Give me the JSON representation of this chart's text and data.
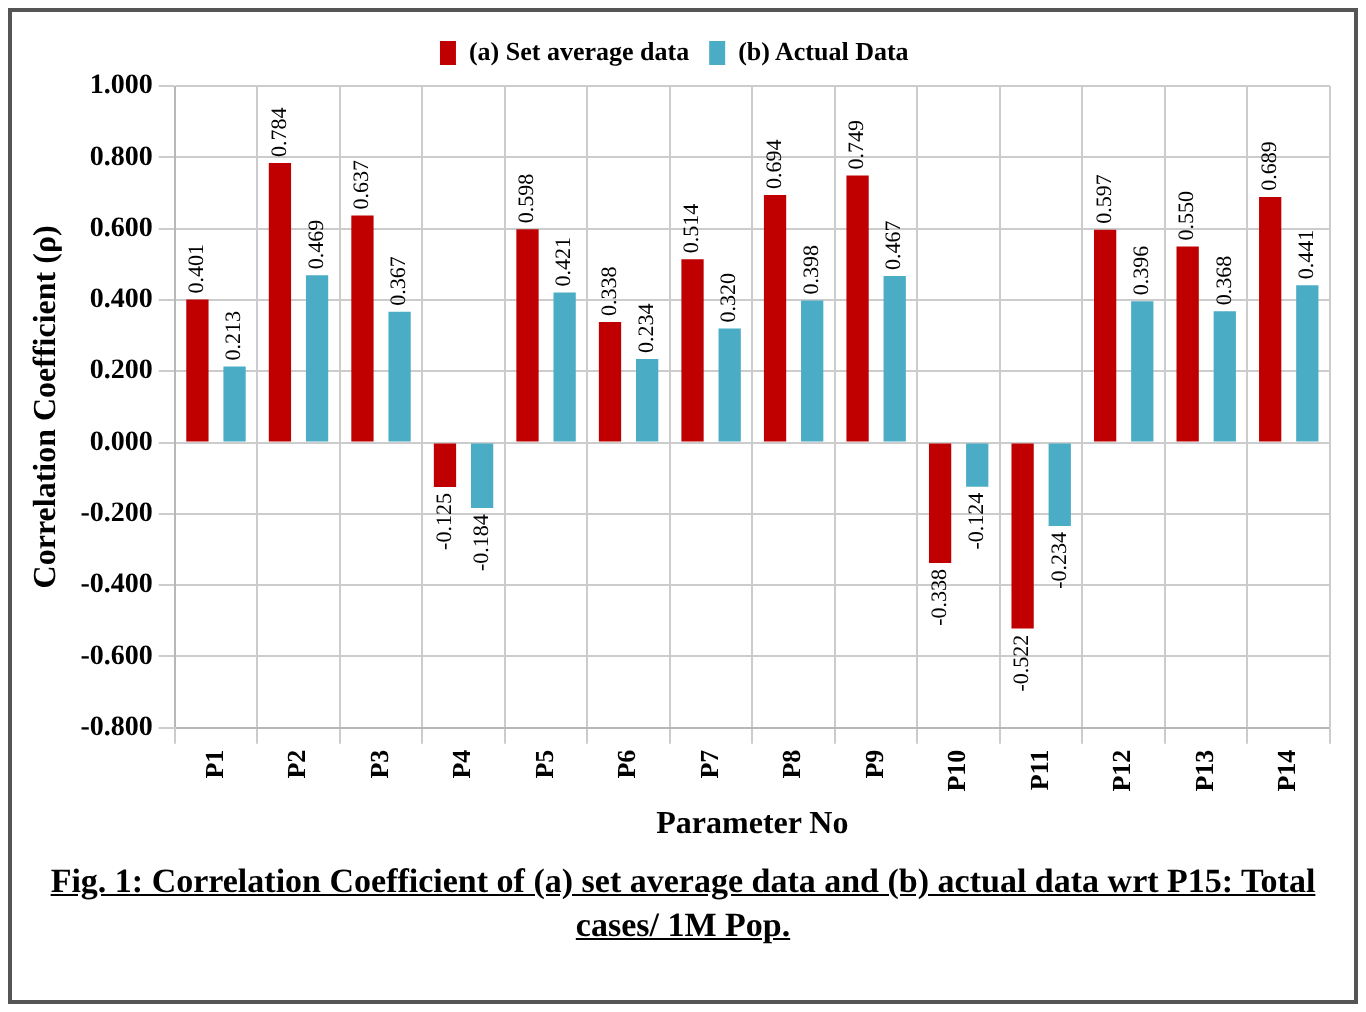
{
  "chart_data": {
    "type": "bar",
    "xlabel": "Parameter No",
    "ylabel": "Correlation Coefficient (ρ)",
    "categories": [
      "P1",
      "P2",
      "P3",
      "P4",
      "P5",
      "P6",
      "P7",
      "P8",
      "P9",
      "P10",
      "P11",
      "P12",
      "P13",
      "P14"
    ],
    "series": [
      {
        "name": "(a) Set average data",
        "color": "#c00000",
        "values": [
          0.401,
          0.784,
          0.637,
          -0.125,
          0.598,
          0.338,
          0.514,
          0.694,
          0.749,
          -0.338,
          -0.522,
          0.597,
          0.55,
          0.689
        ],
        "value_labels": [
          "0.401",
          "0.784",
          "0.637",
          "-0.125",
          "0.598",
          "0.338",
          "0.514",
          "0.694",
          "0.749",
          "-0.338",
          "-0.522",
          "0.597",
          "0.550",
          "0.689"
        ]
      },
      {
        "name": "(b) Actual Data",
        "color": "#4bacc6",
        "values": [
          0.213,
          0.469,
          0.367,
          -0.184,
          0.421,
          0.234,
          0.32,
          0.398,
          0.467,
          -0.124,
          -0.234,
          0.396,
          0.368,
          0.441
        ],
        "value_labels": [
          "0.213",
          "0.469",
          "0.367",
          "-0.184",
          "0.421",
          "0.234",
          "0.320",
          "0.398",
          "0.467",
          "-0.124",
          "-0.234",
          "0.396",
          "0.368",
          "0.441"
        ]
      }
    ],
    "ylim": [
      -0.8,
      1.0
    ],
    "yticks": [
      {
        "value": -0.8,
        "label": "-0.800"
      },
      {
        "value": -0.6,
        "label": "-0.600"
      },
      {
        "value": -0.4,
        "label": "-0.400"
      },
      {
        "value": -0.2,
        "label": "-0.200"
      },
      {
        "value": 0,
        "label": "0.000"
      },
      {
        "value": 0.2,
        "label": "0.200"
      },
      {
        "value": 0.4,
        "label": "0.400"
      },
      {
        "value": 0.6,
        "label": "0.600"
      },
      {
        "value": 0.8,
        "label": "0.800"
      },
      {
        "value": 1.0,
        "label": "1.000"
      }
    ],
    "grid": true,
    "legend": "top",
    "annotations": [
      "Fig. 1:  Correlation Coefficient of (a) set average data and (b) actual data wrt P15: Total cases/ 1M Pop."
    ]
  }
}
